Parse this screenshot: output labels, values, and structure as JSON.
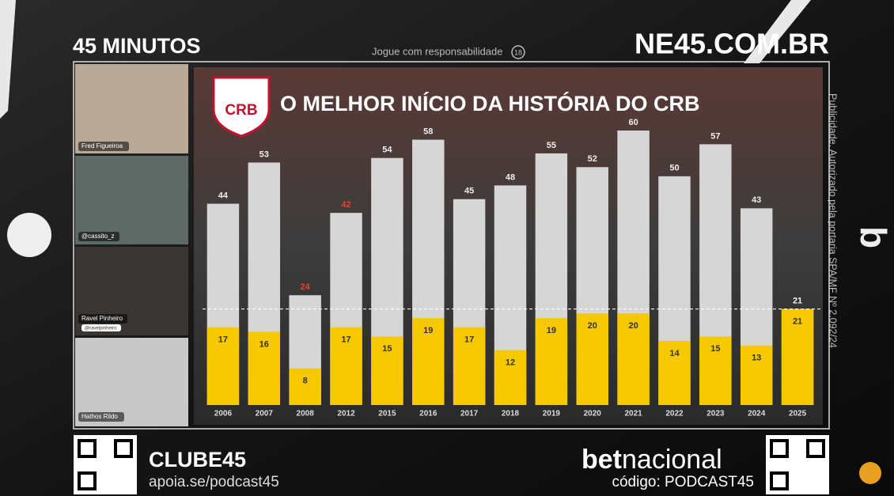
{
  "overlay": {
    "show_title": "45 MINUTOS",
    "disclaimer": "Jogue com responsabilidade",
    "age_badge": "18",
    "site": "NE45.COM.BR",
    "participants": [
      {
        "name": "Fred Figueiroa"
      },
      {
        "name": "@cassito_z"
      },
      {
        "name": "Ravel Pinheiro",
        "handle": "@ravelpinheiro"
      },
      {
        "name": "Hathos Rildo"
      }
    ],
    "legal": "Publicidade. Autorizado pela portaria SPA/MF Nº 2.092/24",
    "club_name": "CLUBE45",
    "club_url": "apoia.se/podcast45",
    "sponsor_bold": "bet",
    "sponsor_light": "nacional",
    "sponsor_code": "código: PODCAST45"
  },
  "chart_data": {
    "type": "bar",
    "title": "O MELHOR INÍCIO DA HISTÓRIA DO CRB",
    "logo": "CRB",
    "categories": [
      "2006",
      "2007",
      "2008",
      "2012",
      "2015",
      "2016",
      "2017",
      "2018",
      "2019",
      "2020",
      "2021",
      "2022",
      "2023",
      "2024",
      "2025"
    ],
    "series": [
      {
        "color": "#d6d6d6",
        "values": [
          44,
          53,
          24,
          42,
          54,
          58,
          45,
          48,
          55,
          52,
          60,
          50,
          57,
          43,
          21
        ],
        "label_colors": [
          "#eeeeee",
          "#eeeeee",
          "#e8452c",
          "#e8452c",
          "#eeeeee",
          "#eeeeee",
          "#eeeeee",
          "#eeeeee",
          "#eeeeee",
          "#eeeeee",
          "#eeeeee",
          "#eeeeee",
          "#eeeeee",
          "#eeeeee",
          "#eeeeee"
        ]
      },
      {
        "color": "#f6c800",
        "values": [
          17,
          16,
          8,
          17,
          15,
          19,
          17,
          12,
          19,
          20,
          20,
          14,
          15,
          13,
          21
        ]
      }
    ],
    "reference_line": 21,
    "ylim": [
      0,
      60
    ]
  }
}
